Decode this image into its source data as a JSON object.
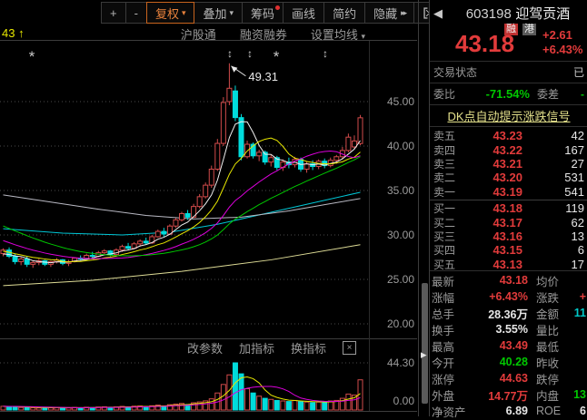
{
  "colors": {
    "red": "#e23b3b",
    "green": "#00c800",
    "white": "#e6e6e6",
    "cyan": "#00c8c8",
    "up": "#d24b4b",
    "down": "#00dcdc",
    "label": "#9a9a9a",
    "axis": "#9b9b9b"
  },
  "toolbar": {
    "buttons": [
      {
        "name": "zoom-in",
        "label": "+"
      },
      {
        "name": "zoom-out",
        "label": "-"
      },
      {
        "name": "fuquan",
        "label": "复权",
        "dropdown": true,
        "active": true
      },
      {
        "name": "overlay",
        "label": "叠加",
        "dropdown": true
      },
      {
        "name": "chips",
        "label": "筹码",
        "dot": true
      },
      {
        "name": "draw-line",
        "label": "画线"
      },
      {
        "name": "simple",
        "label": "简约"
      },
      {
        "name": "hide",
        "label": "隐藏",
        "dbl": "▸▸"
      }
    ]
  },
  "subbar": {
    "left_label": "43 ↑",
    "links": [
      "沪股通",
      "融资融券"
    ],
    "ma_settings": "设置均线"
  },
  "indicator_bar": {
    "items": [
      "改参数",
      "加指标",
      "换指标"
    ],
    "close": "×"
  },
  "chart_data": {
    "type": "candlestick",
    "y_ticks": [
      {
        "label": "45.00",
        "price": 45
      },
      {
        "label": "40.00",
        "price": 40
      },
      {
        "label": "35.00",
        "price": 35
      },
      {
        "label": "30.00",
        "price": 30
      },
      {
        "label": "25.00",
        "price": 25
      },
      {
        "label": "20.00",
        "price": 20
      }
    ],
    "vol_axis": {
      "max_label": "44.30",
      "max": 44.3,
      "zero_label": "0.00"
    },
    "annotation": {
      "text": "49.31",
      "candle_index": 38,
      "price": 49.31
    },
    "markers": [
      {
        "glyph": "*",
        "x": 35
      },
      {
        "glyph": "↕",
        "x": 253
      },
      {
        "glyph": "↕",
        "x": 275
      },
      {
        "glyph": "*",
        "x": 304
      },
      {
        "glyph": "↕",
        "x": 358
      }
    ],
    "pre_closes": [
      36.0,
      35.8,
      35.5,
      35.2,
      34.9,
      34.6,
      34.2,
      33.8,
      33.4,
      33.0,
      32.6,
      32.2,
      31.8,
      31.4,
      31.0,
      30.6,
      30.3,
      30.0,
      29.7,
      29.4,
      29.1,
      28.9,
      28.7,
      28.5,
      28.3,
      28.1,
      27.9,
      27.8,
      27.7,
      27.6
    ],
    "candles": [
      [
        27.9,
        28.5,
        27.6,
        28.3
      ],
      [
        28.3,
        28.6,
        27.4,
        27.6
      ],
      [
        27.6,
        27.9,
        26.7,
        27.0
      ],
      [
        27.0,
        27.5,
        26.6,
        27.3
      ],
      [
        27.3,
        27.6,
        26.4,
        26.7
      ],
      [
        26.7,
        27.1,
        26.3,
        26.9
      ],
      [
        26.9,
        27.3,
        26.6,
        27.1
      ],
      [
        27.1,
        27.2,
        26.5,
        26.7
      ],
      [
        26.7,
        27.1,
        26.4,
        27.0
      ],
      [
        27.0,
        27.4,
        26.8,
        27.2
      ],
      [
        27.2,
        27.3,
        26.6,
        26.8
      ],
      [
        26.8,
        27.2,
        26.5,
        27.0
      ],
      [
        27.0,
        27.5,
        26.9,
        27.4
      ],
      [
        27.4,
        27.7,
        27.1,
        27.3
      ],
      [
        27.3,
        27.9,
        27.2,
        27.7
      ],
      [
        27.7,
        28.1,
        27.4,
        27.6
      ],
      [
        27.6,
        28.2,
        27.5,
        28.0
      ],
      [
        28.0,
        28.4,
        27.7,
        28.2
      ],
      [
        28.2,
        28.3,
        27.6,
        27.8
      ],
      [
        27.8,
        28.5,
        27.7,
        28.3
      ],
      [
        28.3,
        28.9,
        28.1,
        28.7
      ],
      [
        28.7,
        29.1,
        28.3,
        28.5
      ],
      [
        28.5,
        29.2,
        28.4,
        29.0
      ],
      [
        29.0,
        29.5,
        28.7,
        29.3
      ],
      [
        29.3,
        29.7,
        28.9,
        29.1
      ],
      [
        29.1,
        30.0,
        29.0,
        29.8
      ],
      [
        29.8,
        30.6,
        29.7,
        30.4
      ],
      [
        30.4,
        30.8,
        29.8,
        30.1
      ],
      [
        30.1,
        31.2,
        30.0,
        31.0
      ],
      [
        31.0,
        31.9,
        30.8,
        31.7
      ],
      [
        31.7,
        32.6,
        31.5,
        32.4
      ],
      [
        32.4,
        32.8,
        31.7,
        32.0
      ],
      [
        32.0,
        33.5,
        31.9,
        33.2
      ],
      [
        33.2,
        34.6,
        33.0,
        34.3
      ],
      [
        34.3,
        35.9,
        34.1,
        35.6
      ],
      [
        35.6,
        37.8,
        35.3,
        37.4
      ],
      [
        37.4,
        40.8,
        37.2,
        40.3
      ],
      [
        40.3,
        45.5,
        40.0,
        44.9
      ],
      [
        45.0,
        49.31,
        44.6,
        46.5
      ],
      [
        46.2,
        46.8,
        42.8,
        43.2
      ],
      [
        43.2,
        43.6,
        38.4,
        38.8
      ],
      [
        38.8,
        40.6,
        38.6,
        40.2
      ],
      [
        40.2,
        40.4,
        38.6,
        38.9
      ],
      [
        38.9,
        39.6,
        38.3,
        39.3
      ],
      [
        39.3,
        39.5,
        37.9,
        38.2
      ],
      [
        38.2,
        39.0,
        37.7,
        38.7
      ],
      [
        38.7,
        38.9,
        37.3,
        37.6
      ],
      [
        37.6,
        38.5,
        37.2,
        38.2
      ],
      [
        38.2,
        38.7,
        37.5,
        37.9
      ],
      [
        37.9,
        38.8,
        37.6,
        38.5
      ],
      [
        38.5,
        38.7,
        37.1,
        37.4
      ],
      [
        37.4,
        38.3,
        37.0,
        38.0
      ],
      [
        38.0,
        38.4,
        37.3,
        37.7
      ],
      [
        37.7,
        38.5,
        37.4,
        38.3
      ],
      [
        38.3,
        38.6,
        37.5,
        37.8
      ],
      [
        37.8,
        38.7,
        37.6,
        38.4
      ],
      [
        38.4,
        39.0,
        38.0,
        38.8
      ],
      [
        38.8,
        39.9,
        38.5,
        39.5
      ],
      [
        39.5,
        41.4,
        39.3,
        41.0
      ],
      [
        39.9,
        41.2,
        39.7,
        40.57
      ],
      [
        40.28,
        43.49,
        40.1,
        43.18
      ]
    ],
    "volumes": [
      3.5,
      3.1,
      2.8,
      2.4,
      2.6,
      2.2,
      2.0,
      2.3,
      2.1,
      2.5,
      2.2,
      2.0,
      2.4,
      2.1,
      2.6,
      2.3,
      2.8,
      3.0,
      2.5,
      2.9,
      3.4,
      3.0,
      3.6,
      3.8,
      3.2,
      4.0,
      4.6,
      3.8,
      5.0,
      5.6,
      6.2,
      5.2,
      6.8,
      7.6,
      8.6,
      10.5,
      16.0,
      24.0,
      33.0,
      44.3,
      34.0,
      20.0,
      16.0,
      13.0,
      11.0,
      10.0,
      9.0,
      8.5,
      8.0,
      9.0,
      8.0,
      7.5,
      7.0,
      7.5,
      8.0,
      8.5,
      9.0,
      11.0,
      15.0,
      14.0,
      28.36
    ],
    "ma_computed": [
      {
        "period": 5,
        "color": "#f0f0f0"
      },
      {
        "period": 10,
        "color": "#e8e800"
      },
      {
        "period": 20,
        "color": "#dc00dc"
      },
      {
        "period": 30,
        "color": "#00c800"
      }
    ],
    "ma_static": [
      {
        "name": "ma60",
        "color": "#00c8d7",
        "points": [
          [
            0,
            30.7
          ],
          [
            10,
            30.2
          ],
          [
            20,
            30.0
          ],
          [
            28,
            30.3
          ],
          [
            36,
            31.2
          ],
          [
            44,
            32.4
          ],
          [
            52,
            33.6
          ],
          [
            60,
            34.8
          ]
        ]
      },
      {
        "name": "ma120",
        "color": "#b9b9c3",
        "points": [
          [
            0,
            34.5
          ],
          [
            8,
            33.7
          ],
          [
            16,
            32.9
          ],
          [
            24,
            32.2
          ],
          [
            32,
            31.8
          ],
          [
            40,
            32.0
          ],
          [
            48,
            32.7
          ],
          [
            54,
            33.4
          ],
          [
            60,
            34.1
          ]
        ]
      },
      {
        "name": "ma250",
        "color": "#dedc96",
        "points": [
          [
            0,
            24.3
          ],
          [
            15,
            24.9
          ],
          [
            30,
            25.9
          ],
          [
            45,
            27.2
          ],
          [
            60,
            28.9
          ]
        ]
      }
    ],
    "vol_ma": [
      {
        "period": 5,
        "color": "#e8e800"
      },
      {
        "period": 10,
        "color": "#dc00dc"
      }
    ]
  },
  "quote_panel": {
    "back_icon": "◀",
    "code": "603198",
    "name": "迎驾贡酒",
    "badges": [
      {
        "label": "融",
        "bg": "#c03030"
      },
      {
        "label": "港",
        "bg": "#5a5a5a"
      }
    ],
    "price": "43.18",
    "change": "+2.61",
    "change_pct": "+6.43%",
    "trade_status_label": "交易状态",
    "trade_status_value": "已",
    "weibi_label": "委比",
    "weibi_value": "-71.54%",
    "weicha_label": "委差",
    "weicha_value": "-",
    "dk_link": "DK点自动提示涨跌信号",
    "order_book": {
      "asks": [
        {
          "label": "卖五",
          "price": "43.23",
          "vol": "42"
        },
        {
          "label": "卖四",
          "price": "43.22",
          "vol": "167"
        },
        {
          "label": "卖三",
          "price": "43.21",
          "vol": "27"
        },
        {
          "label": "卖二",
          "price": "43.20",
          "vol": "531"
        },
        {
          "label": "卖一",
          "price": "43.19",
          "vol": "541"
        }
      ],
      "bids": [
        {
          "label": "买一",
          "price": "43.18",
          "vol": "119"
        },
        {
          "label": "买二",
          "price": "43.17",
          "vol": "62"
        },
        {
          "label": "买三",
          "price": "43.16",
          "vol": "13"
        },
        {
          "label": "买四",
          "price": "43.15",
          "vol": "6"
        },
        {
          "label": "买五",
          "price": "43.13",
          "vol": "17"
        }
      ]
    },
    "stats": [
      {
        "l1": "最新",
        "v1": "43.18",
        "c1": "red",
        "l2": "均价",
        "v2": "",
        "c2": "white"
      },
      {
        "l1": "涨幅",
        "v1": "+6.43%",
        "c1": "red",
        "l2": "涨跌",
        "v2": "+",
        "c2": "red"
      },
      {
        "l1": "总手",
        "v1": "28.36万",
        "c1": "white",
        "l2": "金额",
        "v2": "11",
        "c2": "cyan"
      },
      {
        "l1": "换手",
        "v1": "3.55%",
        "c1": "white",
        "l2": "量比",
        "v2": "",
        "c2": "white"
      },
      {
        "l1": "最高",
        "v1": "43.49",
        "c1": "red",
        "l2": "最低",
        "v2": "",
        "c2": "white"
      },
      {
        "l1": "今开",
        "v1": "40.28",
        "c1": "green",
        "l2": "昨收",
        "v2": "",
        "c2": "white"
      },
      {
        "l1": "涨停",
        "v1": "44.63",
        "c1": "red",
        "l2": "跌停",
        "v2": "",
        "c2": "white"
      },
      {
        "l1": "外盘",
        "v1": "14.77万",
        "c1": "red",
        "l2": "内盘",
        "v2": "13",
        "c2": "green"
      },
      {
        "l1": "净资产",
        "v1": "6.89",
        "c1": "white",
        "l2": "ROE",
        "v2": "6",
        "c2": "white"
      }
    ]
  }
}
